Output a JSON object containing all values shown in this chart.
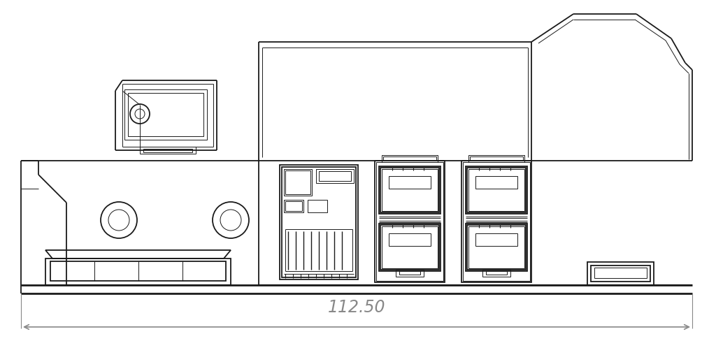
{
  "background_color": "#ffffff",
  "line_color": "#1a1a1a",
  "dim_color": "#888888",
  "line_width": 1.3,
  "thin_lw": 0.7,
  "thick_lw": 2.0,
  "dimension_text": "112.50",
  "dimension_fontsize": 17,
  "figure_width": 10.24,
  "figure_height": 5.21,
  "dpi": 100
}
